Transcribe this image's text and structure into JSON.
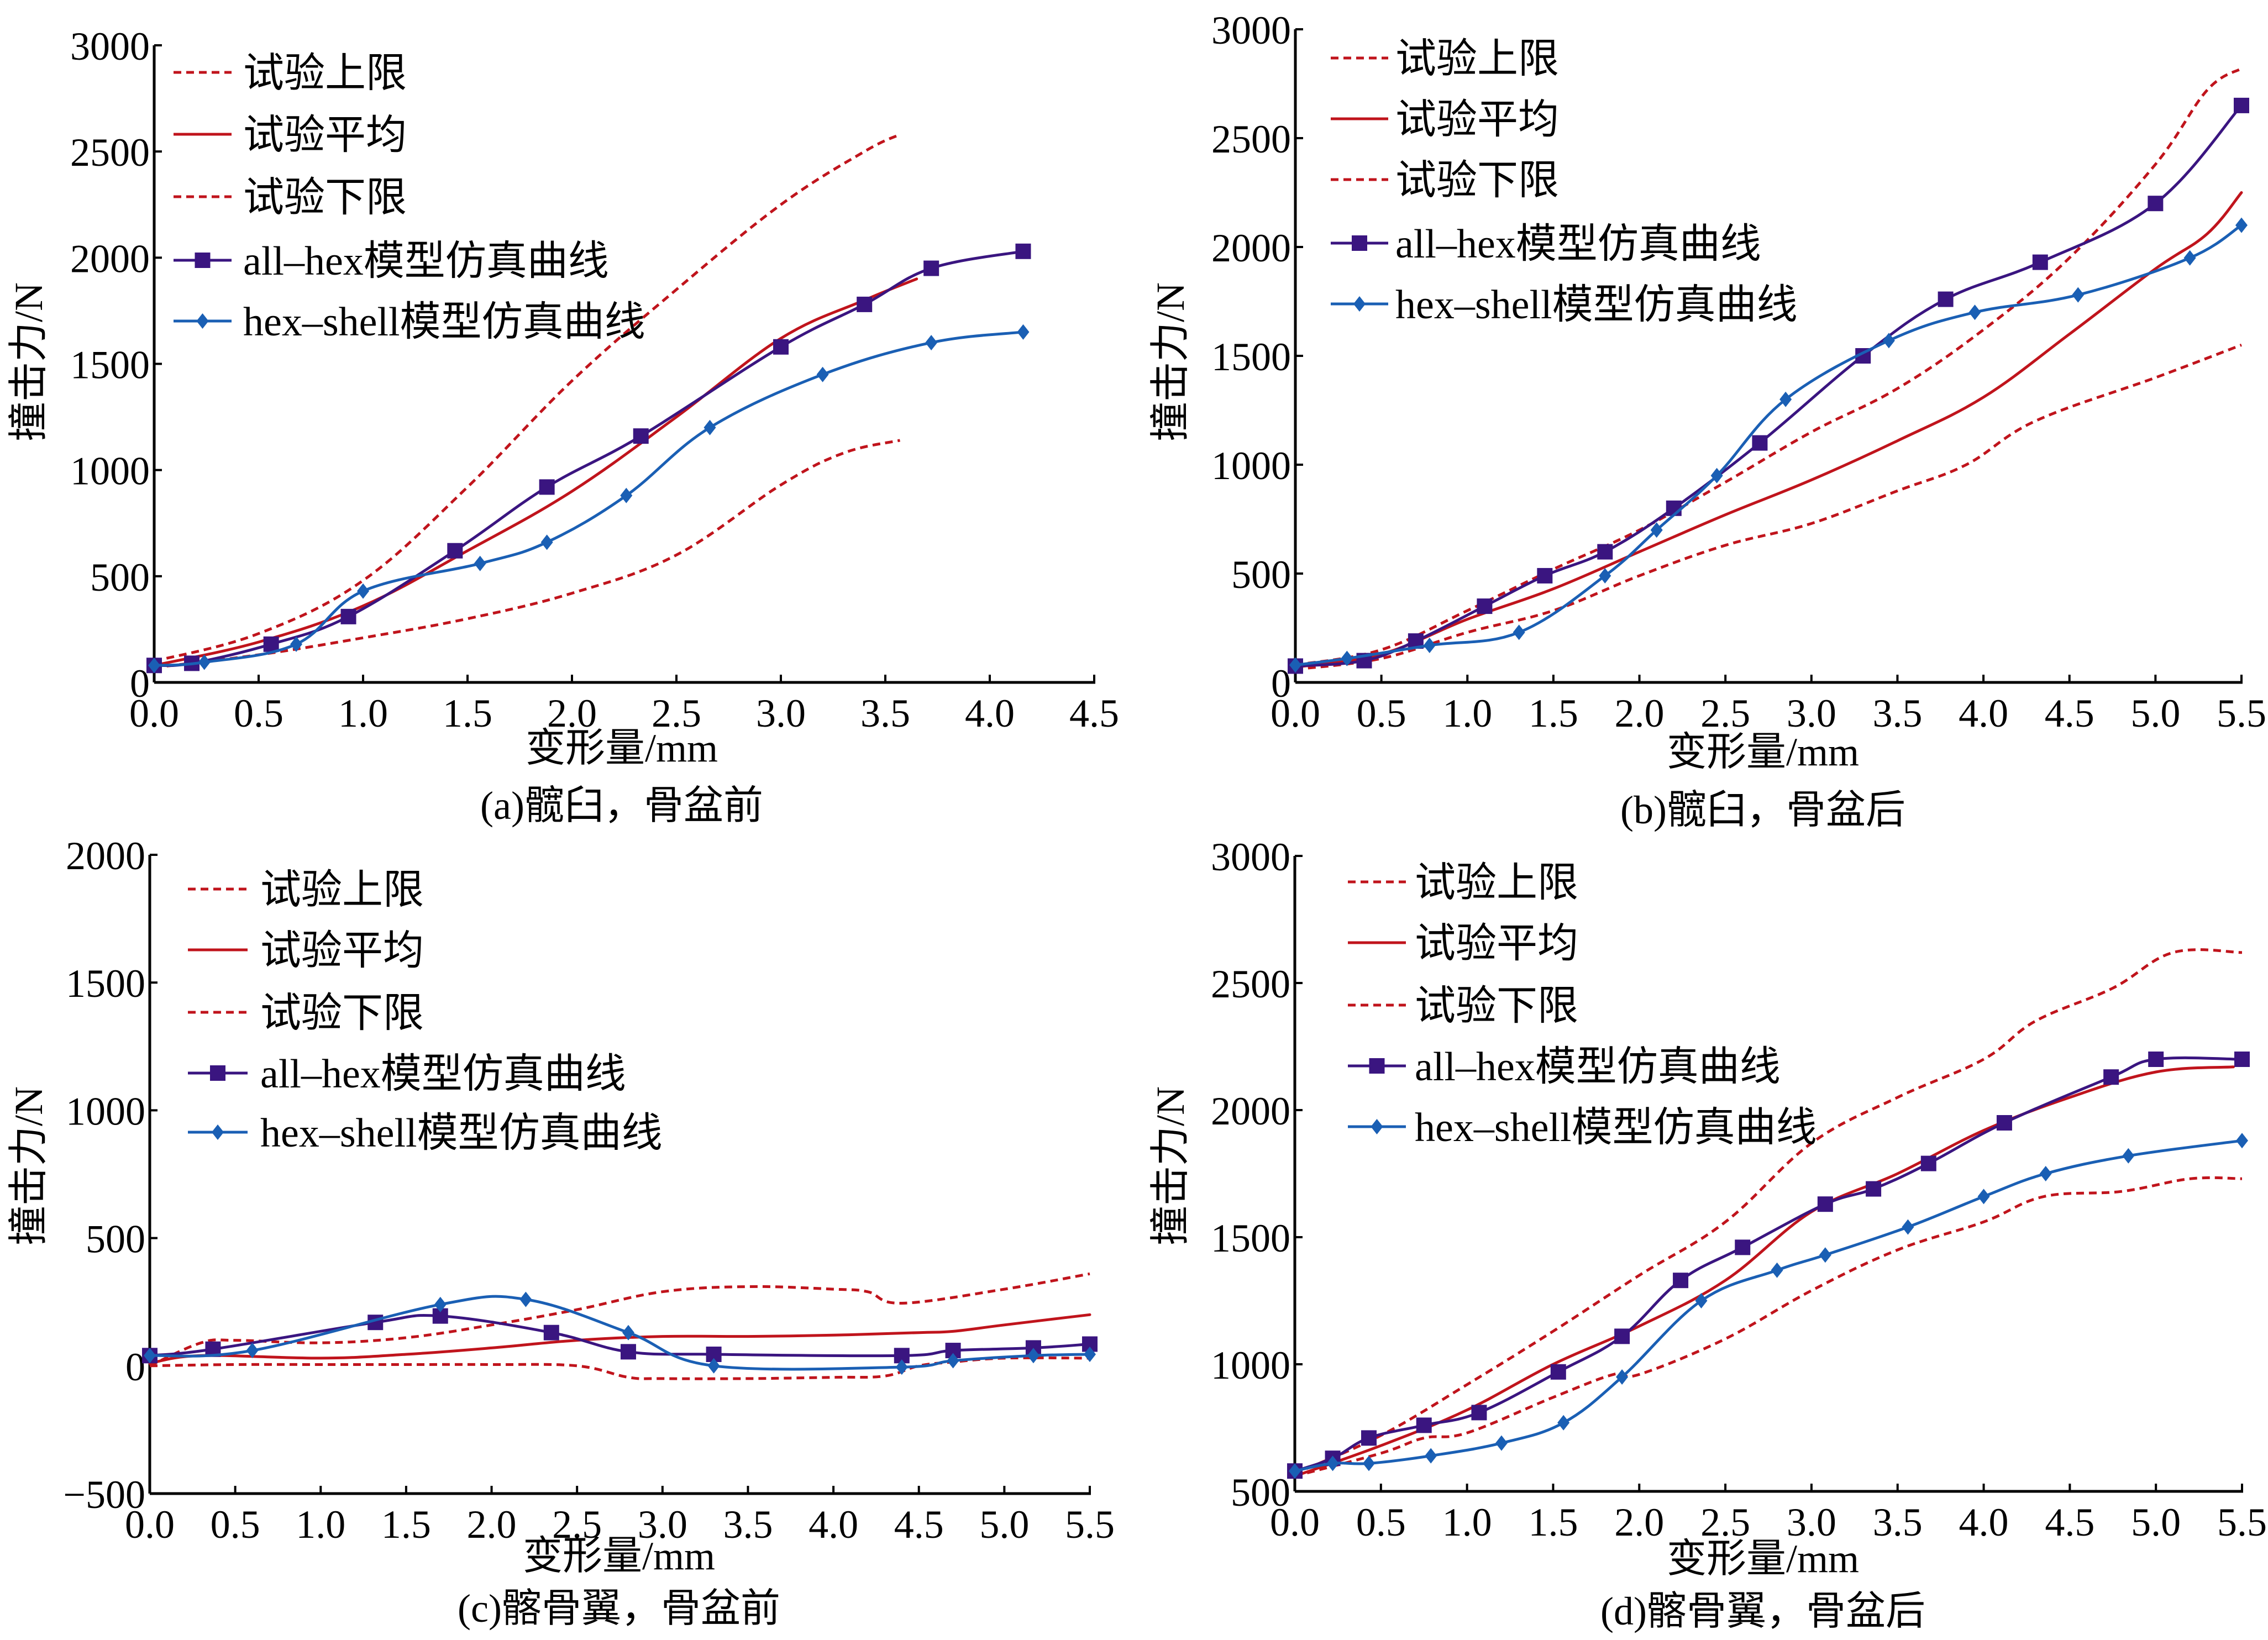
{
  "colors": {
    "experiment": "#c0141c",
    "all_hex": "#3a1580",
    "hex_shell": "#1a5fb4",
    "axis": "#000000"
  },
  "legend_labels": {
    "upper": "试验上限",
    "mean": "试验平均",
    "lower": "试验下限",
    "all_hex": "all–hex模型仿真曲线",
    "hex_shell": "hex–shell模型仿真曲线"
  },
  "chart_data": [
    {
      "id": "a",
      "type": "line",
      "caption": "(a)髋臼，骨盆前",
      "xlabel": "变形量/mm",
      "ylabel": "撞击力/N",
      "xlim": [
        0,
        4.5
      ],
      "ylim": [
        0,
        3000
      ],
      "xticks": [
        "0.0",
        "0.5",
        "1.0",
        "1.5",
        "2.0",
        "2.5",
        "3.0",
        "3.5",
        "4.0",
        "4.5"
      ],
      "yticks": [
        "0",
        "500",
        "1000",
        "1500",
        "2000",
        "2500",
        "3000"
      ],
      "xtick_values": [
        0,
        0.5,
        1,
        1.5,
        2,
        2.5,
        3,
        3.5,
        4,
        4.5
      ],
      "ytick_values": [
        0,
        500,
        1000,
        1500,
        2000,
        2500,
        3000
      ],
      "legend": "top-left",
      "grid": false,
      "series": [
        {
          "key": "upper",
          "name": "试验上限",
          "style": "dashed",
          "marker": "none",
          "x": [
            0,
            0.5,
            1.0,
            1.5,
            2.0,
            2.5,
            3.0,
            3.4,
            3.57
          ],
          "y": [
            100,
            230,
            480,
            920,
            1420,
            1850,
            2250,
            2500,
            2580
          ]
        },
        {
          "key": "mean",
          "name": "试验平均",
          "style": "solid",
          "marker": "none",
          "x": [
            0,
            0.5,
            1.0,
            1.5,
            2.0,
            2.5,
            3.0,
            3.4,
            3.65
          ],
          "y": [
            80,
            190,
            360,
            620,
            900,
            1250,
            1620,
            1800,
            1900
          ]
        },
        {
          "key": "lower",
          "name": "试验下限",
          "style": "dashed",
          "marker": "none",
          "x": [
            0,
            0.5,
            1.0,
            1.5,
            2.0,
            2.5,
            3.0,
            3.3,
            3.57
          ],
          "y": [
            70,
            130,
            210,
            300,
            420,
            600,
            930,
            1080,
            1140
          ]
        },
        {
          "key": "all_hex",
          "name": "all–hex模型仿真曲线",
          "style": "solid",
          "marker": "square",
          "x": [
            0,
            0.18,
            0.56,
            0.93,
            1.44,
            1.88,
            2.33,
            3.0,
            3.4,
            3.72,
            4.16
          ],
          "y": [
            80,
            90,
            180,
            310,
            620,
            920,
            1160,
            1580,
            1780,
            1950,
            2030
          ]
        },
        {
          "key": "hex_shell",
          "name": "hex–shell模型仿真曲线",
          "style": "solid",
          "marker": "diamond",
          "x": [
            0,
            0.24,
            0.68,
            1.0,
            1.56,
            1.88,
            2.26,
            2.66,
            3.2,
            3.72,
            4.16
          ],
          "y": [
            80,
            95,
            180,
            430,
            560,
            660,
            880,
            1200,
            1450,
            1600,
            1650
          ]
        }
      ]
    },
    {
      "id": "b",
      "type": "line",
      "caption": "(b)髋臼，骨盆后",
      "xlabel": "变形量/mm",
      "ylabel": "撞击力/N",
      "xlim": [
        0,
        5.5
      ],
      "ylim": [
        0,
        3000
      ],
      "xticks": [
        "0.0",
        "0.5",
        "1.0",
        "1.5",
        "2.0",
        "2.5",
        "3.0",
        "3.5",
        "4.0",
        "4.5",
        "5.0",
        "5.5"
      ],
      "yticks": [
        "0",
        "500",
        "1000",
        "1500",
        "2000",
        "2500",
        "3000"
      ],
      "xtick_values": [
        0,
        0.5,
        1,
        1.5,
        2,
        2.5,
        3,
        3.5,
        4,
        4.5,
        5,
        5.5
      ],
      "ytick_values": [
        0,
        500,
        1000,
        1500,
        2000,
        2500,
        3000
      ],
      "legend": "top-left",
      "grid": false,
      "series": [
        {
          "key": "upper",
          "name": "试验上限",
          "style": "dashed",
          "marker": "none",
          "x": [
            0,
            0.5,
            1.0,
            1.5,
            2.0,
            2.5,
            3.0,
            3.5,
            4.0,
            4.5,
            5.0,
            5.3,
            5.5
          ],
          "y": [
            80,
            150,
            330,
            520,
            700,
            920,
            1150,
            1350,
            1620,
            1950,
            2380,
            2720,
            2820
          ]
        },
        {
          "key": "mean",
          "name": "试验平均",
          "style": "solid",
          "marker": "none",
          "x": [
            0,
            0.5,
            1.0,
            1.5,
            2.0,
            2.5,
            3.0,
            3.5,
            4.0,
            4.5,
            5.0,
            5.3,
            5.5
          ],
          "y": [
            70,
            130,
            290,
            430,
            600,
            770,
            930,
            1110,
            1310,
            1600,
            1900,
            2060,
            2250
          ]
        },
        {
          "key": "lower",
          "name": "试验下限",
          "style": "dashed",
          "marker": "none",
          "x": [
            0,
            0.5,
            1.0,
            1.5,
            2.0,
            2.5,
            3.0,
            3.5,
            3.9,
            4.3,
            5.0,
            5.5
          ],
          "y": [
            60,
            110,
            230,
            330,
            490,
            630,
            730,
            880,
            1000,
            1200,
            1400,
            1550
          ]
        },
        {
          "key": "all_hex",
          "name": "all–hex模型仿真曲线",
          "style": "solid",
          "marker": "square",
          "x": [
            0,
            0.4,
            0.7,
            1.1,
            1.45,
            1.8,
            2.2,
            2.7,
            3.3,
            3.78,
            4.33,
            5.0,
            5.5
          ],
          "y": [
            75,
            100,
            190,
            350,
            490,
            600,
            800,
            1100,
            1500,
            1760,
            1930,
            2200,
            2650
          ]
        },
        {
          "key": "hex_shell",
          "name": "hex–shell模型仿真曲线",
          "style": "solid",
          "marker": "diamond",
          "x": [
            0,
            0.3,
            0.78,
            1.3,
            1.8,
            2.1,
            2.45,
            2.85,
            3.45,
            3.95,
            4.55,
            5.2,
            5.5
          ],
          "y": [
            80,
            110,
            170,
            230,
            490,
            700,
            950,
            1300,
            1570,
            1700,
            1780,
            1950,
            2100
          ]
        }
      ]
    },
    {
      "id": "c",
      "type": "line",
      "caption": "(c)髂骨翼，骨盆前",
      "xlabel": "变形量/mm",
      "ylabel": "撞击力/N",
      "xlim": [
        0,
        5.5
      ],
      "ylim": [
        -500,
        2000
      ],
      "xticks": [
        "0.0",
        "0.5",
        "1.0",
        "1.5",
        "2.0",
        "2.5",
        "3.0",
        "3.5",
        "4.0",
        "4.5",
        "5.0",
        "5.5"
      ],
      "yticks": [
        "−500",
        "0",
        "500",
        "1000",
        "1500",
        "2000"
      ],
      "xtick_values": [
        0,
        0.5,
        1,
        1.5,
        2,
        2.5,
        3,
        3.5,
        4,
        4.5,
        5,
        5.5
      ],
      "ytick_values": [
        -500,
        0,
        500,
        1000,
        1500,
        2000
      ],
      "legend": "top-left",
      "grid": false,
      "series": [
        {
          "key": "upper",
          "name": "试验上限",
          "style": "dashed",
          "marker": "none",
          "x": [
            0,
            0.3,
            0.5,
            1.0,
            1.5,
            2.0,
            2.5,
            3.0,
            3.5,
            4.0,
            4.2,
            4.4,
            5.0,
            5.5
          ],
          "y": [
            0,
            90,
            100,
            90,
            110,
            160,
            220,
            290,
            310,
            300,
            290,
            245,
            300,
            360
          ]
        },
        {
          "key": "mean",
          "name": "试验平均",
          "style": "solid",
          "marker": "none",
          "x": [
            0,
            0.3,
            1.0,
            1.5,
            2.0,
            2.5,
            3.0,
            3.5,
            4.0,
            4.5,
            4.7,
            5.0,
            5.5
          ],
          "y": [
            10,
            40,
            30,
            45,
            70,
            100,
            115,
            115,
            120,
            130,
            135,
            160,
            200
          ]
        },
        {
          "key": "lower",
          "name": "试验下限",
          "style": "dashed",
          "marker": "none",
          "x": [
            0,
            0.5,
            1.0,
            1.5,
            2.0,
            2.5,
            2.8,
            3.0,
            3.5,
            4.0,
            4.3,
            4.5,
            4.7,
            5.0,
            5.5
          ],
          "y": [
            0,
            5,
            5,
            5,
            5,
            0,
            -45,
            -50,
            -50,
            -45,
            -40,
            0,
            15,
            30,
            30
          ]
        },
        {
          "key": "all_hex",
          "name": "all–hex模型仿真曲线",
          "style": "solid",
          "marker": "square",
          "x": [
            0,
            0.37,
            1.32,
            1.7,
            2.35,
            2.8,
            3.3,
            4.4,
            4.7,
            5.17,
            5.5
          ],
          "y": [
            40,
            65,
            170,
            195,
            130,
            55,
            45,
            40,
            60,
            70,
            85
          ]
        },
        {
          "key": "hex_shell",
          "name": "hex–shell模型仿真曲线",
          "style": "solid",
          "marker": "diamond",
          "x": [
            0,
            0.6,
            1.7,
            2.2,
            2.8,
            3.3,
            4.4,
            4.7,
            5.17,
            5.5
          ],
          "y": [
            40,
            60,
            240,
            260,
            130,
            0,
            -5,
            20,
            40,
            45
          ]
        }
      ]
    },
    {
      "id": "d",
      "type": "line",
      "caption": "(d)髂骨翼，骨盆后",
      "xlabel": "变形量/mm",
      "ylabel": "撞击力/N",
      "xlim": [
        0,
        5.5
      ],
      "ylim": [
        500,
        3000
      ],
      "xticks": [
        "0.0",
        "0.5",
        "1.0",
        "1.5",
        "2.0",
        "2.5",
        "3.0",
        "3.5",
        "4.0",
        "4.5",
        "5.0",
        "5.5"
      ],
      "yticks": [
        "500",
        "1000",
        "1500",
        "2000",
        "2500",
        "3000"
      ],
      "xtick_values": [
        0,
        0.5,
        1,
        1.5,
        2,
        2.5,
        3,
        3.5,
        4,
        4.5,
        5,
        5.5
      ],
      "ytick_values": [
        500,
        1000,
        1500,
        2000,
        2500,
        3000
      ],
      "legend": "top-left",
      "grid": false,
      "series": [
        {
          "key": "upper",
          "name": "试验上限",
          "style": "dashed",
          "marker": "none",
          "x": [
            0,
            0.5,
            1.0,
            1.5,
            2.0,
            2.5,
            3.0,
            3.5,
            4.0,
            4.3,
            4.75,
            5.1,
            5.5
          ],
          "y": [
            570,
            720,
            920,
            1130,
            1350,
            1560,
            1870,
            2050,
            2200,
            2350,
            2480,
            2620,
            2620
          ]
        },
        {
          "key": "mean",
          "name": "试验平均",
          "style": "solid",
          "marker": "none",
          "x": [
            0,
            0.5,
            1.0,
            1.5,
            2.0,
            2.5,
            3.0,
            3.5,
            4.0,
            4.5,
            5.0,
            5.45
          ],
          "y": [
            560,
            680,
            820,
            1000,
            1150,
            1330,
            1600,
            1750,
            1920,
            2050,
            2150,
            2170
          ]
        },
        {
          "key": "lower",
          "name": "试验下限",
          "style": "dashed",
          "marker": "none",
          "x": [
            0,
            0.5,
            0.75,
            1.0,
            1.5,
            1.85,
            2.0,
            2.5,
            3.0,
            3.5,
            4.0,
            4.35,
            4.8,
            5.2,
            5.5
          ],
          "y": [
            560,
            650,
            710,
            730,
            870,
            960,
            960,
            1100,
            1290,
            1450,
            1560,
            1660,
            1680,
            1730,
            1730
          ]
        },
        {
          "key": "all_hex",
          "name": "all–hex模型仿真曲线",
          "style": "solid",
          "marker": "square",
          "x": [
            0,
            0.22,
            0.43,
            0.75,
            1.07,
            1.53,
            1.9,
            2.24,
            2.6,
            3.08,
            3.36,
            3.68,
            4.12,
            4.74,
            5.0,
            5.5
          ],
          "y": [
            580,
            630,
            710,
            760,
            810,
            970,
            1110,
            1330,
            1460,
            1630,
            1690,
            1790,
            1950,
            2130,
            2200,
            2200
          ]
        },
        {
          "key": "hex_shell",
          "name": "hex–shell模型仿真曲线",
          "style": "solid",
          "marker": "diamond",
          "x": [
            0,
            0.22,
            0.43,
            0.79,
            1.2,
            1.56,
            1.9,
            2.36,
            2.8,
            3.08,
            3.56,
            4.0,
            4.36,
            4.84,
            5.5
          ],
          "y": [
            580,
            610,
            610,
            640,
            690,
            770,
            950,
            1250,
            1370,
            1430,
            1540,
            1660,
            1750,
            1820,
            1880
          ]
        }
      ]
    }
  ]
}
